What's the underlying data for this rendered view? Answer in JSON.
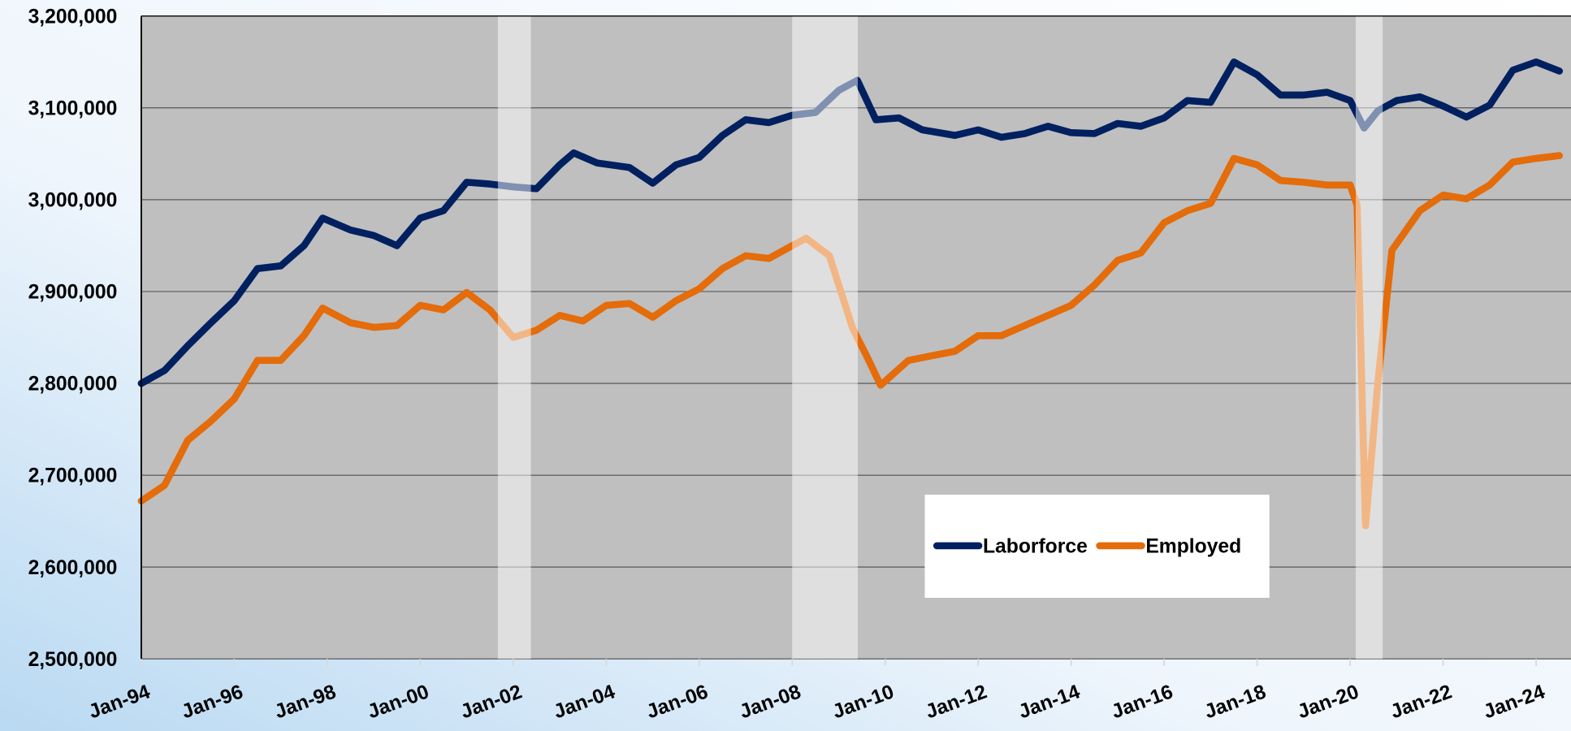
{
  "chart_data": {
    "type": "line",
    "xlim": [
      1994,
      2024.75
    ],
    "ylim": [
      2500000,
      3200000
    ],
    "xticks": [
      {
        "value": 1994,
        "label": "Jan-94"
      },
      {
        "value": 1996,
        "label": "Jan-96"
      },
      {
        "value": 1998,
        "label": "Jan-98"
      },
      {
        "value": 2000,
        "label": "Jan-00"
      },
      {
        "value": 2002,
        "label": "Jan-02"
      },
      {
        "value": 2004,
        "label": "Jan-04"
      },
      {
        "value": 2006,
        "label": "Jan-06"
      },
      {
        "value": 2008,
        "label": "Jan-08"
      },
      {
        "value": 2010,
        "label": "Jan-10"
      },
      {
        "value": 2012,
        "label": "Jan-12"
      },
      {
        "value": 2014,
        "label": "Jan-14"
      },
      {
        "value": 2016,
        "label": "Jan-16"
      },
      {
        "value": 2018,
        "label": "Jan-18"
      },
      {
        "value": 2020,
        "label": "Jan-20"
      },
      {
        "value": 2022,
        "label": "Jan-22"
      },
      {
        "value": 2024,
        "label": "Jan-24"
      }
    ],
    "yticks": [
      {
        "value": 2500000,
        "label": "2,500,000"
      },
      {
        "value": 2600000,
        "label": "2,600,000"
      },
      {
        "value": 2700000,
        "label": "2,700,000"
      },
      {
        "value": 2800000,
        "label": "2,800,000"
      },
      {
        "value": 2900000,
        "label": "2,900,000"
      },
      {
        "value": 3000000,
        "label": "3,000,000"
      },
      {
        "value": 3100000,
        "label": "3,100,000"
      },
      {
        "value": 3200000,
        "label": "3,200,000"
      }
    ],
    "grid": true,
    "shaded_periods": [
      [
        2001.67,
        2002.38
      ],
      [
        2008.0,
        2009.41
      ],
      [
        2020.12,
        2020.7
      ]
    ],
    "series": [
      {
        "name": "Laborforce",
        "color": "#002060",
        "x": [
          1994,
          1994.5,
          1995,
          1995.5,
          1996,
          1996.5,
          1997,
          1997.5,
          1997.9,
          1998.5,
          1999,
          1999.5,
          2000,
          2000.5,
          2001,
          2001.5,
          2002,
          2002.5,
          2003,
          2003.3,
          2003.8,
          2004.5,
          2005,
          2005.5,
          2006,
          2006.5,
          2007,
          2007.5,
          2008,
          2008.5,
          2009,
          2009.4,
          2009.8,
          2010.3,
          2010.8,
          2011.5,
          2012,
          2012.5,
          2013,
          2013.5,
          2014,
          2014.5,
          2015,
          2015.5,
          2016,
          2016.5,
          2017,
          2017.5,
          2018,
          2018.5,
          2019,
          2019.5,
          2020,
          2020.3,
          2020.6,
          2021,
          2021.5,
          2022,
          2022.5,
          2023,
          2023.5,
          2024,
          2024.5
        ],
        "values": [
          2800000,
          2814000,
          2841000,
          2866000,
          2890000,
          2925000,
          2928000,
          2950000,
          2980000,
          2967000,
          2961000,
          2950000,
          2980000,
          2988000,
          3019000,
          3017000,
          3014000,
          3012000,
          3038000,
          3051000,
          3040000,
          3035000,
          3018000,
          3038000,
          3046000,
          3070000,
          3087000,
          3084000,
          3092000,
          3095000,
          3119000,
          3130000,
          3087000,
          3089000,
          3076000,
          3070000,
          3076000,
          3068000,
          3072000,
          3080000,
          3073000,
          3072000,
          3083000,
          3080000,
          3089000,
          3108000,
          3106000,
          3150000,
          3136000,
          3114000,
          3114000,
          3117000,
          3108000,
          3078000,
          3097000,
          3108000,
          3112000,
          3102000,
          3090000,
          3103000,
          3141000,
          3150000,
          3140000
        ]
      },
      {
        "name": "Employed",
        "color": "#e46c0a",
        "x": [
          1994,
          1994.5,
          1995,
          1995.5,
          1996,
          1996.5,
          1997,
          1997.5,
          1997.9,
          1998.5,
          1999,
          1999.5,
          2000,
          2000.5,
          2001,
          2001.5,
          2002,
          2002.5,
          2003,
          2003.5,
          2004,
          2004.5,
          2005,
          2005.5,
          2006,
          2006.5,
          2007,
          2007.5,
          2008,
          2008.3,
          2008.8,
          2009.3,
          2009.6,
          2009.9,
          2010.5,
          2011,
          2011.5,
          2012,
          2012.5,
          2013,
          2013.5,
          2014,
          2014.5,
          2015,
          2015.5,
          2016,
          2016.5,
          2017,
          2017.5,
          2018,
          2018.5,
          2019,
          2019.5,
          2020,
          2020.15,
          2020.33,
          2020.6,
          2020.9,
          2021.5,
          2022,
          2022.5,
          2023,
          2023.5,
          2024,
          2024.5
        ],
        "values": [
          2672000,
          2689000,
          2738000,
          2759000,
          2783000,
          2825000,
          2825000,
          2852000,
          2882000,
          2866000,
          2861000,
          2863000,
          2885000,
          2880000,
          2899000,
          2880000,
          2850000,
          2858000,
          2874000,
          2868000,
          2885000,
          2887000,
          2872000,
          2890000,
          2903000,
          2925000,
          2939000,
          2936000,
          2950000,
          2958000,
          2939000,
          2860000,
          2830000,
          2798000,
          2825000,
          2830000,
          2835000,
          2852000,
          2852000,
          2863000,
          2874000,
          2885000,
          2907000,
          2934000,
          2942000,
          2975000,
          2988000,
          2996000,
          3045000,
          3038000,
          3021000,
          3019000,
          3016000,
          3016000,
          2994000,
          2645000,
          2803000,
          2945000,
          2988000,
          3005000,
          3001000,
          3016000,
          3041000,
          3045000,
          3048000
        ]
      }
    ]
  }
}
